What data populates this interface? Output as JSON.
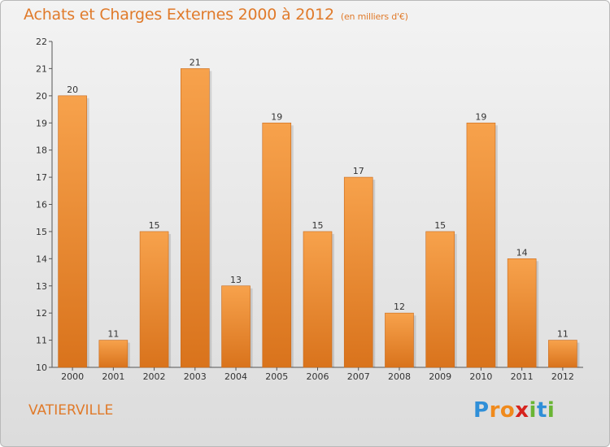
{
  "chart_data": {
    "type": "bar",
    "title": "Achats et Charges Externes 2000 à 2012",
    "subtitle": "(en milliers d'€)",
    "categories": [
      "2000",
      "2001",
      "2002",
      "2003",
      "2004",
      "2005",
      "2006",
      "2007",
      "2008",
      "2009",
      "2010",
      "2011",
      "2012"
    ],
    "values": [
      20,
      11,
      15,
      21,
      13,
      19,
      15,
      17,
      12,
      15,
      19,
      14,
      11
    ],
    "ylim": [
      10,
      22
    ],
    "yticks": [
      10,
      11,
      12,
      13,
      14,
      15,
      16,
      17,
      18,
      19,
      20,
      21,
      22
    ],
    "xlabel": "",
    "ylabel": "",
    "grid": false,
    "bar_color": "#f5a04a"
  },
  "footer": {
    "commune": "VATIERVILLE",
    "logo_letters": [
      "P",
      "r",
      "o",
      "x",
      "i",
      "t",
      "i"
    ],
    "logo_colors": [
      "#2f8fd8",
      "#f08a1c",
      "#f08a1c",
      "#d6231e",
      "#6ab534",
      "#2f8fd8",
      "#6ab534"
    ]
  }
}
